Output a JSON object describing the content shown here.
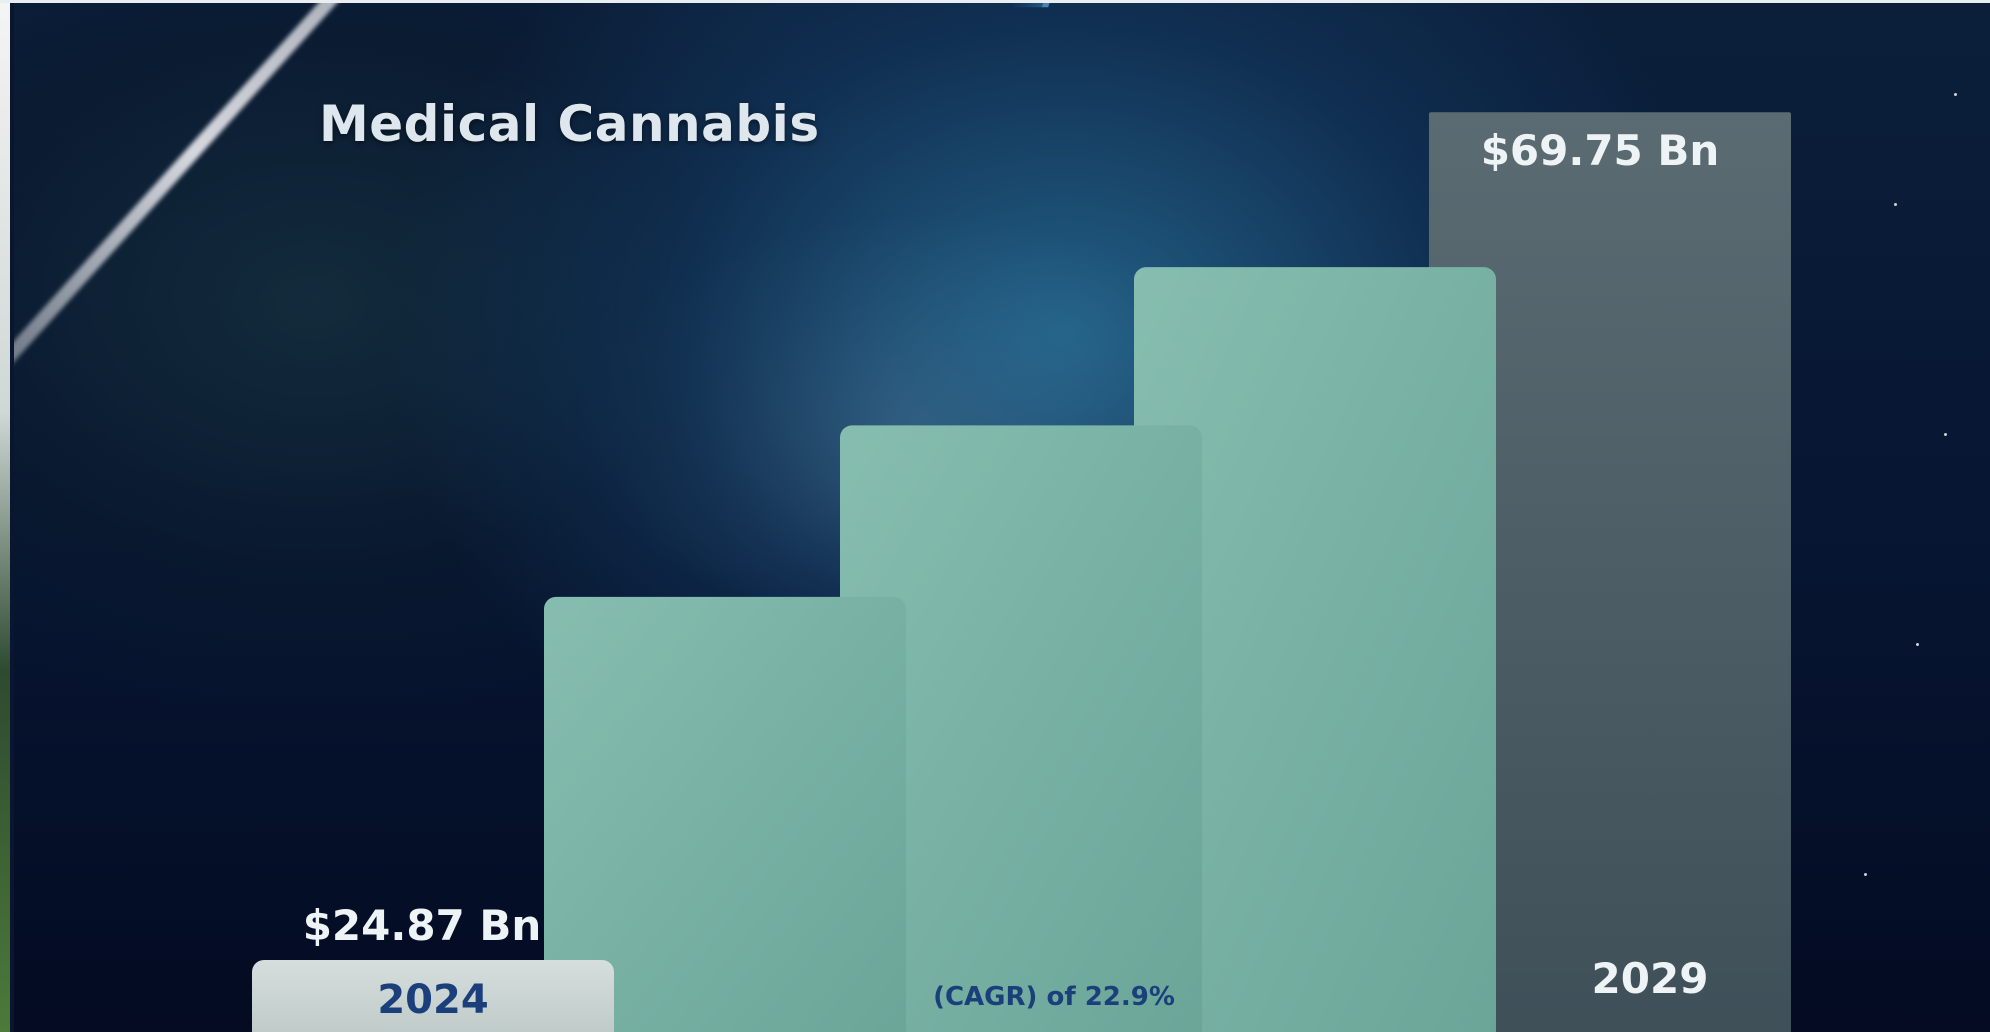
{
  "slide": {
    "title": "Medical Cannabis"
  },
  "colors": {
    "bar_start": "#cdd6d6",
    "bar_mid": "#7ab3a6",
    "bar_end": "#4a5d66",
    "label_start_text": "#1a3f7a",
    "label_light_text": "#eef3f5",
    "cagr_text": "#1a3f7a"
  },
  "chart_data": {
    "type": "bar",
    "title": "Medical Cannabis",
    "categories": [
      "2024",
      "",
      "",
      "",
      "2029"
    ],
    "values": [
      24.87,
      33.0,
      46.0,
      58.0,
      69.75
    ],
    "value_labels": [
      "$24.87 Bn",
      "",
      "",
      "",
      "$69.75 Bn"
    ],
    "annotation": "(CAGR) of 22.9%",
    "ylim": [
      0,
      75
    ],
    "grid": false
  }
}
